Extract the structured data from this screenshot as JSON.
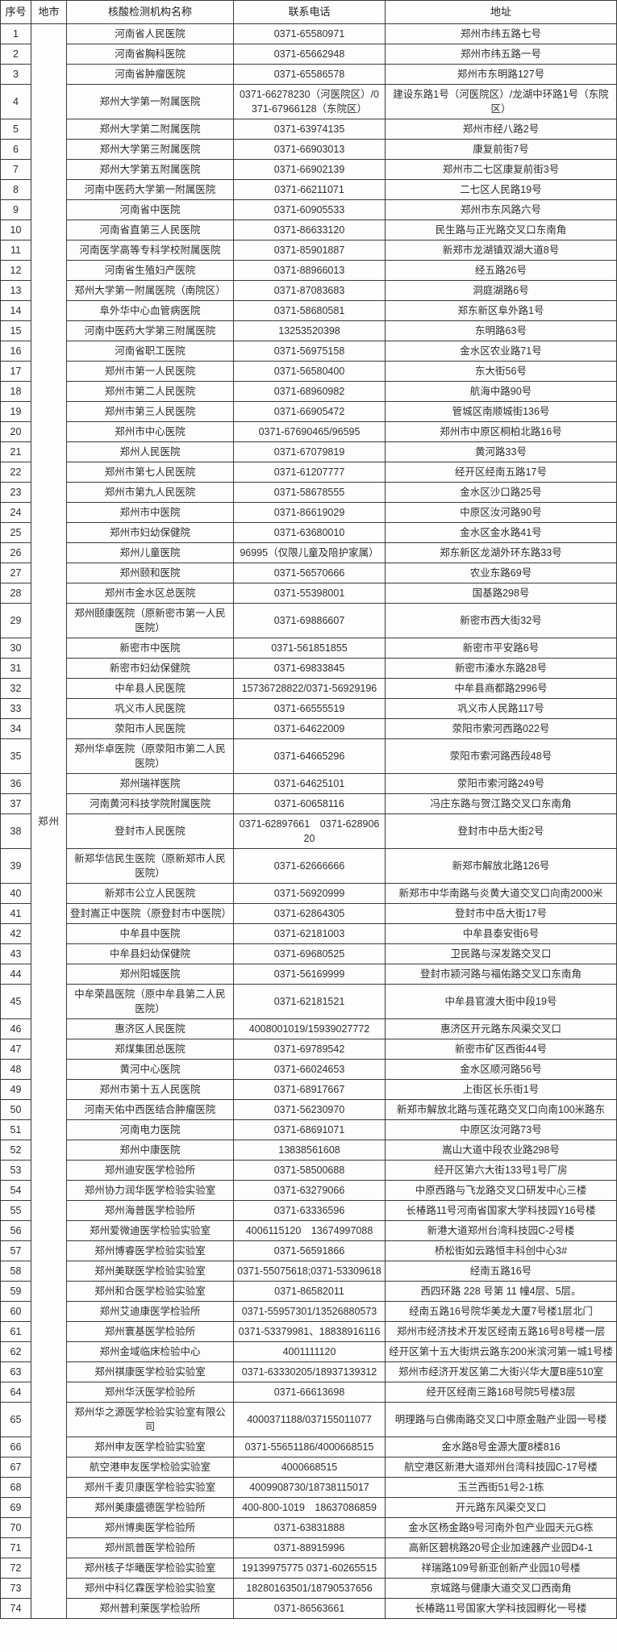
{
  "table": {
    "title_semantic": "核酸检测机构联系表",
    "headers": [
      "序号",
      "地市",
      "核酸检测机构名称",
      "联系电话",
      "地址"
    ],
    "city": "郑州",
    "rows": [
      {
        "no": "1",
        "name": "河南省人民医院",
        "phone": "0371-65580971",
        "address": "郑州市纬五路七号"
      },
      {
        "no": "2",
        "name": "河南省胸科医院",
        "phone": "0371-65662948",
        "address": "郑州市纬五路一号"
      },
      {
        "no": "3",
        "name": "河南省肿瘤医院",
        "phone": "0371-65586578",
        "address": "郑州市东明路127号"
      },
      {
        "no": "4",
        "name": "郑州大学第一附属医院",
        "phone": "0371-66278230（河医院区）/0371-67966128（东院区）",
        "address": "建设东路1号（河医院区）/龙湖中环路1号（东院区）"
      },
      {
        "no": "5",
        "name": "郑州大学第二附属医院",
        "phone": "0371-63974135",
        "address": "郑州市经八路2号"
      },
      {
        "no": "6",
        "name": "郑州大学第三附属医院",
        "phone": "0371-66903013",
        "address": "康复前街7号"
      },
      {
        "no": "7",
        "name": "郑州大学第五附属医院",
        "phone": "0371-66902139",
        "address": "郑州市二七区康复前街3号"
      },
      {
        "no": "8",
        "name": "河南中医药大学第一附属医院",
        "phone": "0371-66211071",
        "address": "二七区人民路19号"
      },
      {
        "no": "9",
        "name": "河南省中医院",
        "phone": "0371-60905533",
        "address": "郑州市东风路六号"
      },
      {
        "no": "10",
        "name": "河南省直第三人民医院",
        "phone": "0371-86633120",
        "address": "民生路与正光路交叉口东南角"
      },
      {
        "no": "11",
        "name": "河南医学高等专科学校附属医院",
        "phone": "0371-85901887",
        "address": "新郑市龙湖镇双湖大道8号"
      },
      {
        "no": "12",
        "name": "河南省生殖妇产医院",
        "phone": "0371-88966013",
        "address": "经五路26号"
      },
      {
        "no": "13",
        "name": "郑州大学第一附属医院（南院区）",
        "phone": "0371-87083683",
        "address": "洞庭湖路6号"
      },
      {
        "no": "14",
        "name": "阜外华中心血管病医院",
        "phone": "0371-58680581",
        "address": "郑东新区阜外路1号"
      },
      {
        "no": "15",
        "name": "河南中医药大学第三附属医院",
        "phone": "13253520398",
        "address": "东明路63号"
      },
      {
        "no": "16",
        "name": "河南省职工医院",
        "phone": "0371-56975158",
        "address": "金水区农业路71号"
      },
      {
        "no": "17",
        "name": "郑州市第一人民医院",
        "phone": "0371-56580400",
        "address": "东大街56号"
      },
      {
        "no": "18",
        "name": "郑州市第二人民医院",
        "phone": "0371-68960982",
        "address": "航海中路90号"
      },
      {
        "no": "19",
        "name": "郑州市第三人民医院",
        "phone": "0371-66905472",
        "address": "管城区南顺城街136号"
      },
      {
        "no": "20",
        "name": "郑州市中心医院",
        "phone": "0371-67690465/96595",
        "address": "郑州市中原区桐柏北路16号"
      },
      {
        "no": "21",
        "name": "郑州人民医院",
        "phone": "0371-67079819",
        "address": "黄河路33号"
      },
      {
        "no": "22",
        "name": "郑州市第七人民医院",
        "phone": "0371-61207777",
        "address": "经开区经南五路17号"
      },
      {
        "no": "23",
        "name": "郑州市第九人民医院",
        "phone": "0371-58678555",
        "address": "金水区沙口路25号"
      },
      {
        "no": "24",
        "name": "郑州市中医院",
        "phone": "0371-86619029",
        "address": "中原区汝河路90号"
      },
      {
        "no": "25",
        "name": "郑州市妇幼保健院",
        "phone": "0371-63680010",
        "address": "金水区金水路41号"
      },
      {
        "no": "26",
        "name": "郑州儿童医院",
        "phone": "96995（仅限儿童及陪护家属）",
        "address": "郑东新区龙湖外环东路33号"
      },
      {
        "no": "27",
        "name": "郑州颐和医院",
        "phone": "0371-56570666",
        "address": "农业东路69号"
      },
      {
        "no": "28",
        "name": "郑州市金水区总医院",
        "phone": "0371-55398001",
        "address": "国基路298号"
      },
      {
        "no": "29",
        "name": "郑州颐康医院（原新密市第一人民医院）",
        "phone": "0371-69886607",
        "address": "新密市西大街32号"
      },
      {
        "no": "30",
        "name": "新密市中医院",
        "phone": "0371-561851855",
        "address": "新密市平安路6号"
      },
      {
        "no": "31",
        "name": "新密市妇幼保健院",
        "phone": "0371-69833845",
        "address": "新密市溱水东路28号"
      },
      {
        "no": "32",
        "name": "中牟县人民医院",
        "phone": "15736728822/0371-56929196",
        "address": "中牟县商都路2996号"
      },
      {
        "no": "33",
        "name": "巩义市人民医院",
        "phone": "0371-66555519",
        "address": "巩义市人民路117号"
      },
      {
        "no": "34",
        "name": "荥阳市人民医院",
        "phone": "0371-64622009",
        "address": "荥阳市索河西路022号"
      },
      {
        "no": "35",
        "name": "郑州华卓医院（原荥阳市第二人民医院）",
        "phone": "0371-64665296",
        "address": "荥阳市索河路西段48号"
      },
      {
        "no": "36",
        "name": "郑州瑞祥医院",
        "phone": "0371-64625101",
        "address": "荥阳市索河路249号"
      },
      {
        "no": "37",
        "name": "河南黄河科技学院附属医院",
        "phone": "0371-60658116",
        "address": "冯庄东路与贺江路交叉口东南角"
      },
      {
        "no": "38",
        "name": "登封市人民医院",
        "phone": "0371-62897661　0371-62890620",
        "address": "登封市中岳大街2号"
      },
      {
        "no": "39",
        "name": "新郑华信民生医院（原新郑市人民医院）",
        "phone": "0371-62666666",
        "address": "新郑市解放北路126号"
      },
      {
        "no": "40",
        "name": "新郑市公立人民医院",
        "phone": "0371-56920999",
        "address": "新郑市中华南路与炎黄大道交叉口向南2000米"
      },
      {
        "no": "41",
        "name": "登封嵩正中医院（原登封市中医院）",
        "phone": "0371-62864305",
        "address": "登封市中岳大街17号"
      },
      {
        "no": "42",
        "name": "中牟县中医院",
        "phone": "0371-62181003",
        "address": "中牟县泰安街6号"
      },
      {
        "no": "43",
        "name": "中牟县妇幼保健院",
        "phone": "0371-69680525",
        "address": "卫民路与深发路交叉口"
      },
      {
        "no": "44",
        "name": "郑州阳城医院",
        "phone": "0371-56169999",
        "address": "登封市颍河路与福佑路交叉口东南角"
      },
      {
        "no": "45",
        "name": "中牟荣昌医院（原中牟县第二人民医院）",
        "phone": "0371-62181521",
        "address": "中牟县官渡大街中段19号"
      },
      {
        "no": "46",
        "name": "惠济区人民医院",
        "phone": "4008001019/15939027772",
        "address": "惠济区开元路东风渠交叉口"
      },
      {
        "no": "47",
        "name": "郑煤集团总医院",
        "phone": "0371-69789542",
        "address": "新密市矿区西街44号"
      },
      {
        "no": "48",
        "name": "黄河中心医院",
        "phone": "0371-66024653",
        "address": "金水区顺河路56号"
      },
      {
        "no": "49",
        "name": "郑州市第十五人民医院",
        "phone": "0371-68917667",
        "address": "上街区长乐街1号"
      },
      {
        "no": "50",
        "name": "河南天佑中西医结合肿瘤医院",
        "phone": "0371-56230970",
        "address": "新郑市解放北路与莲花路交叉口向南100米路东"
      },
      {
        "no": "51",
        "name": "河南电力医院",
        "phone": "0371-68691071",
        "address": "中原区汝河路73号"
      },
      {
        "no": "52",
        "name": "郑州中康医院",
        "phone": "13838561608",
        "address": "嵩山大道中段农业路298号"
      },
      {
        "no": "53",
        "name": "郑州迪安医学检验所",
        "phone": "0371-58500688",
        "address": "经开区第六大街133号1号厂房"
      },
      {
        "no": "54",
        "name": "郑州协力润华医学检验实验室",
        "phone": "0371-63279066",
        "address": "中原西路与飞龙路交叉口研发中心三楼"
      },
      {
        "no": "55",
        "name": "郑州海普医学检验所",
        "phone": "0371-63336596",
        "address": "长椿路11号河南省国家大学科技园Y16号楼"
      },
      {
        "no": "56",
        "name": "郑州爱微迪医学检验实验室",
        "phone": "4006115120　13674997088",
        "address": "新港大道郑州台湾科技园C-2号楼"
      },
      {
        "no": "57",
        "name": "郑州博睿医学检验实验室",
        "phone": "0371-56591866",
        "address": "桥松街如云路恒丰科创中心3#"
      },
      {
        "no": "58",
        "name": "郑州美联医学检验实验室",
        "phone": "0371-55075618;0371-53309618",
        "address": "经南五路16号"
      },
      {
        "no": "59",
        "name": "郑州和合医学检验实验室",
        "phone": "0371-86582011",
        "address": "西四环路 228 号第 11 幢4层、5层。"
      },
      {
        "no": "60",
        "name": "郑州艾迪康医学检验所",
        "phone": "0371-55957301/13526880573",
        "address": "经南五路16号院华美龙大厦7号楼1层北门"
      },
      {
        "no": "61",
        "name": "郑州寰基医学检验所",
        "phone": "0371-53379981、18838916116",
        "address": "郑州市经济技术开发区经南五路16号8号楼一层"
      },
      {
        "no": "62",
        "name": "郑州金域临床检验中心",
        "phone": "4001111120",
        "address": "经开区第十五大街烘云路东200米滨河第一城1号楼"
      },
      {
        "no": "63",
        "name": "郑州祺康医学检验实验室",
        "phone": "0371-63330205/18937139312",
        "address": "郑州市经济开发区第二大街兴华大厦B座510室"
      },
      {
        "no": "64",
        "name": "郑州华沃医学检验所",
        "phone": "0371-66613698",
        "address": "经开区经南三路168号院5号楼3层"
      },
      {
        "no": "65",
        "name": "郑州华之源医学检验实验室有限公司",
        "phone": "4000371188/037155011077",
        "address": "明理路与白佛南路交叉口中原金融产业园一号楼"
      },
      {
        "no": "66",
        "name": "郑州申友医学检验实验室",
        "phone": "0371-55651186/4000668515",
        "address": "金水路8号金源大厦8楼816"
      },
      {
        "no": "67",
        "name": "航空港申友医学检验实验室",
        "phone": "4000668515",
        "address": "航空港区新港大道郑州台湾科技园C-17号楼"
      },
      {
        "no": "68",
        "name": "郑州千麦贝康医学检验实验室",
        "phone": "4009908730/18738115017",
        "address": "玉兰西街51号2-1栋"
      },
      {
        "no": "69",
        "name": "郑州美康盛德医学检验所",
        "phone": "400-800-1019　18637086859",
        "address": "开元路东风渠交叉口"
      },
      {
        "no": "70",
        "name": "郑州博奥医学检验所",
        "phone": "0371-63831888",
        "address": "金水区杨金路9号河南外包产业园天元G栋"
      },
      {
        "no": "71",
        "name": "郑州凯普医学检验所",
        "phone": "0371-88915996",
        "address": "高新区碧桃路20号企业加速器产业园D4-1"
      },
      {
        "no": "72",
        "name": "郑州核子华曦医学检验实验室",
        "phone": "19139975775 0371-60265515",
        "address": "祥瑞路109号新亚创新产业园10号楼"
      },
      {
        "no": "73",
        "name": "郑州中科亿霖医学检验实验室",
        "phone": "18280163501/18790537656",
        "address": "京城路与健康大道交叉口西南角"
      },
      {
        "no": "74",
        "name": "郑州普利莱医学检验所",
        "phone": "0371-86563661",
        "address": "长椿路11号国家大学科技园孵化一号楼"
      }
    ]
  }
}
